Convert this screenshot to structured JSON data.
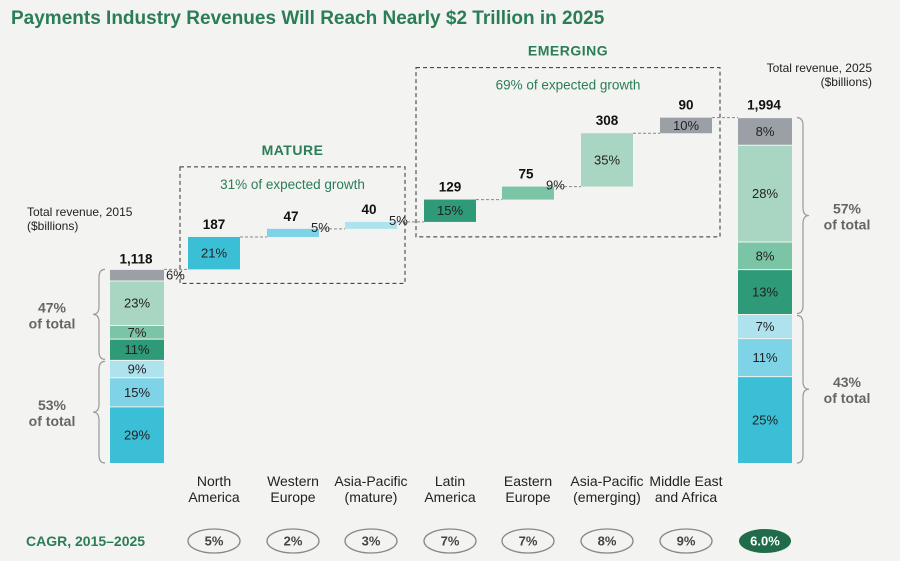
{
  "title": "Payments Industry Revenues Will Reach Nearly $2 Trillion in 2025",
  "colors": {
    "north_america": "#3bbfd6",
    "western_europe": "#7fd3e6",
    "asia_mature": "#aee3ee",
    "latin_america": "#2e9a78",
    "eastern_europe": "#7cc4a6",
    "asia_emerging": "#a9d6c3",
    "mea": "#9aa0a6",
    "title_green": "#2a7d57",
    "cagr_total_fill": "#1f6b4a"
  },
  "total_2015_label": [
    "Total revenue, 2015",
    "($billions)"
  ],
  "total_2025_label": [
    "Total revenue, 2025",
    "($billions)"
  ],
  "mature": {
    "title": "MATURE",
    "subtitle": "31% of expected growth"
  },
  "emerging": {
    "title": "EMERGING",
    "subtitle": "69% of expected growth"
  },
  "left_shares": [
    {
      "line1": "47%",
      "line2": "of total"
    },
    {
      "line1": "53%",
      "line2": "of total"
    }
  ],
  "right_shares": [
    {
      "line1": "57%",
      "line2": "of total"
    },
    {
      "line1": "43%",
      "line2": "of total"
    }
  ],
  "cagr_title": "CAGR, 2015–2025",
  "chart_data": {
    "type": "bar",
    "subtype": "waterfall",
    "title": "Payments Industry Revenues Will Reach Nearly $2 Trillion in 2025",
    "unit": "$billions",
    "start_total": {
      "label": "Total revenue, 2015",
      "value": 1118,
      "value_label": "1,118",
      "segments": [
        {
          "region": "North America",
          "pct": "29%",
          "value": 29
        },
        {
          "region": "Western Europe",
          "pct": "15%",
          "value": 15
        },
        {
          "region": "Asia-Pacific (mature)",
          "pct": "9%",
          "value": 9
        },
        {
          "region": "Latin America",
          "pct": "11%",
          "value": 11
        },
        {
          "region": "Eastern Europe",
          "pct": "7%",
          "value": 7
        },
        {
          "region": "Asia-Pacific (emerging)",
          "pct": "23%",
          "value": 23
        },
        {
          "region": "Middle East and Africa",
          "pct": "6%",
          "value": 6
        }
      ]
    },
    "increments": [
      {
        "key": "north_america",
        "category": "North America",
        "label_lines": [
          "North",
          "America"
        ],
        "value": 187,
        "value_label": "187",
        "pct": "21%",
        "cagr": "5%"
      },
      {
        "key": "western_europe",
        "category": "Western Europe",
        "label_lines": [
          "Western",
          "Europe"
        ],
        "value": 47,
        "value_label": "47",
        "pct": "5%",
        "cagr": "2%"
      },
      {
        "key": "asia_mature",
        "category": "Asia-Pacific (mature)",
        "label_lines": [
          "Asia-Pacific",
          "(mature)"
        ],
        "value": 40,
        "value_label": "40",
        "pct": "5%",
        "cagr": "3%"
      },
      {
        "key": "latin_america",
        "category": "Latin America",
        "label_lines": [
          "Latin",
          "America"
        ],
        "value": 129,
        "value_label": "129",
        "pct": "15%",
        "cagr": "7%"
      },
      {
        "key": "eastern_europe",
        "category": "Eastern Europe",
        "label_lines": [
          "Eastern",
          "Europe"
        ],
        "value": 75,
        "value_label": "75",
        "pct": "9%",
        "cagr": "7%"
      },
      {
        "key": "asia_emerging",
        "category": "Asia-Pacific (emerging)",
        "label_lines": [
          "Asia-Pacific",
          "(emerging)"
        ],
        "value": 308,
        "value_label": "308",
        "pct": "35%",
        "cagr": "8%"
      },
      {
        "key": "mea",
        "category": "Middle East and Africa",
        "label_lines": [
          "Middle East",
          "and Africa"
        ],
        "value": 90,
        "value_label": "90",
        "pct": "10%",
        "cagr": "9%"
      }
    ],
    "end_total": {
      "label": "Total revenue, 2025",
      "value": 1994,
      "value_label": "1,994",
      "cagr": "6.0%",
      "segments": [
        {
          "region": "North America",
          "pct": "25%",
          "value": 25
        },
        {
          "region": "Western Europe",
          "pct": "11%",
          "value": 11
        },
        {
          "region": "Asia-Pacific (mature)",
          "pct": "7%",
          "value": 7
        },
        {
          "region": "Latin America",
          "pct": "13%",
          "value": 13
        },
        {
          "region": "Eastern Europe",
          "pct": "8%",
          "value": 8
        },
        {
          "region": "Asia-Pacific (emerging)",
          "pct": "28%",
          "value": 28
        },
        {
          "region": "Middle East and Africa",
          "pct": "8%",
          "value": 8
        }
      ]
    }
  }
}
